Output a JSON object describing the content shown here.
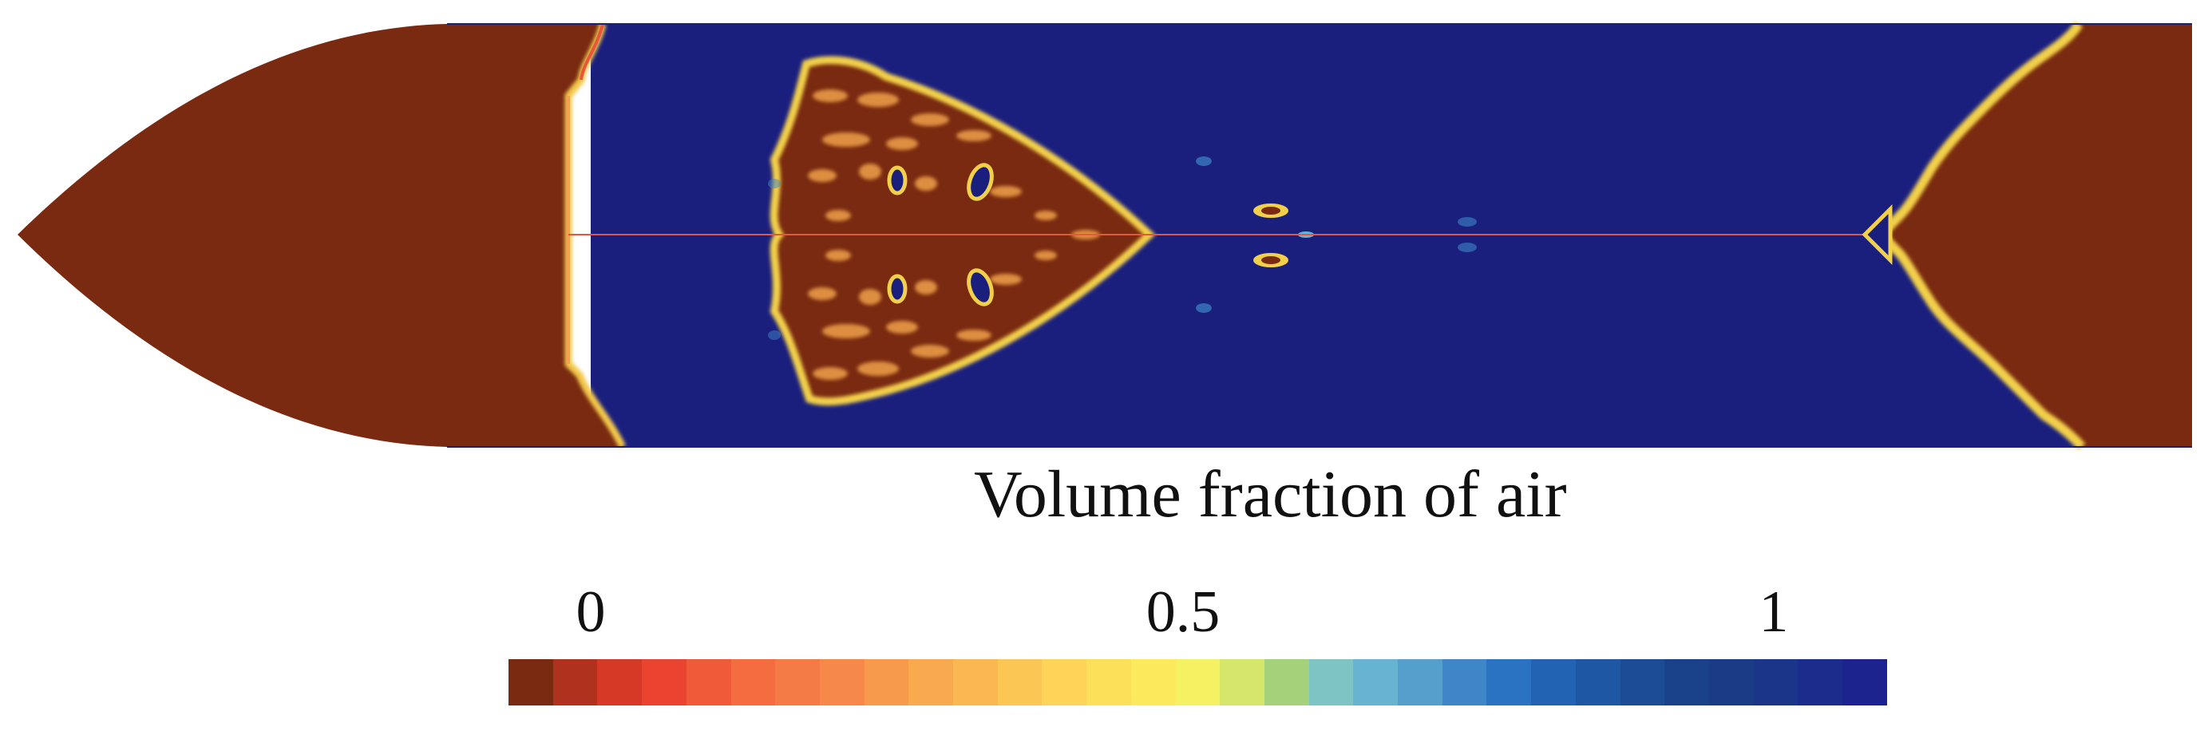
{
  "legend": {
    "title": "Volume fraction of air",
    "ticks": [
      {
        "label": "0",
        "value": 0
      },
      {
        "label": "0.5",
        "value": 0.5
      },
      {
        "label": "1",
        "value": 1
      }
    ],
    "range": [
      0,
      1
    ],
    "colors": [
      "#7a2a10",
      "#b0321e",
      "#d63a26",
      "#ea4430",
      "#f05a38",
      "#f46c40",
      "#f57b46",
      "#f6894a",
      "#f89a4c",
      "#f9a94e",
      "#fbb852",
      "#fcc655",
      "#fdd457",
      "#fde05a",
      "#fdea5c",
      "#f4f262",
      "#d6e66a",
      "#a4d17a",
      "#7fc4c4",
      "#66b3d2",
      "#549fcc",
      "#3f86c8",
      "#2a72c2",
      "#2263b4",
      "#1e58a4",
      "#1c4c96",
      "#1a428a",
      "#1a3c86",
      "#1b3588",
      "#1b2c8c",
      "#1c228e"
    ]
  },
  "field_colors": {
    "water": "#7a2a10",
    "air": "#1a1f7e",
    "interface": "#f2d04a",
    "edge": "#eb5a2e"
  }
}
